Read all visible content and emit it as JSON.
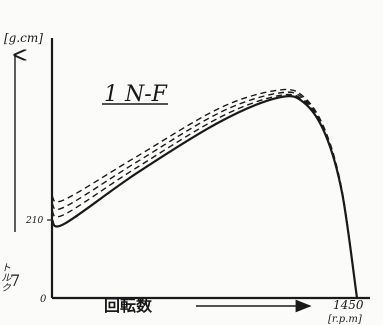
{
  "chart_data": {
    "type": "line",
    "title": "1 N-F",
    "ylabel": "[g.cm]",
    "ylabel_side": "トルク",
    "xlabel": "回転数",
    "xlabel_unit": "[r.p.m]",
    "x_tick_labels": [
      "0",
      "1450"
    ],
    "y_tick_labels": [
      "210"
    ],
    "xlim": [
      0,
      1450
    ],
    "ylim": [
      0,
      700
    ],
    "grid": false,
    "legend": "none",
    "series": [
      {
        "x": [
          0,
          60,
          400,
          800,
          1080,
          1200,
          1300,
          1380,
          1450
        ],
        "values": [
          210,
          200,
          335,
          475,
          540,
          525,
          440,
          280,
          0
        ]
      },
      {
        "x": [
          0,
          60,
          400,
          800,
          1080,
          1200,
          1300,
          1380,
          1450
        ],
        "values": [
          235,
          225,
          350,
          487,
          545,
          530,
          443,
          282,
          0
        ]
      },
      {
        "x": [
          0,
          60,
          400,
          800,
          1080,
          1200,
          1300,
          1380,
          1450
        ],
        "values": [
          255,
          245,
          365,
          500,
          552,
          535,
          446,
          284,
          0
        ]
      },
      {
        "x": [
          0,
          60,
          400,
          800,
          1080,
          1200,
          1300,
          1380,
          1450
        ],
        "values": [
          275,
          265,
          380,
          512,
          560,
          540,
          450,
          286,
          0
        ]
      }
    ]
  }
}
